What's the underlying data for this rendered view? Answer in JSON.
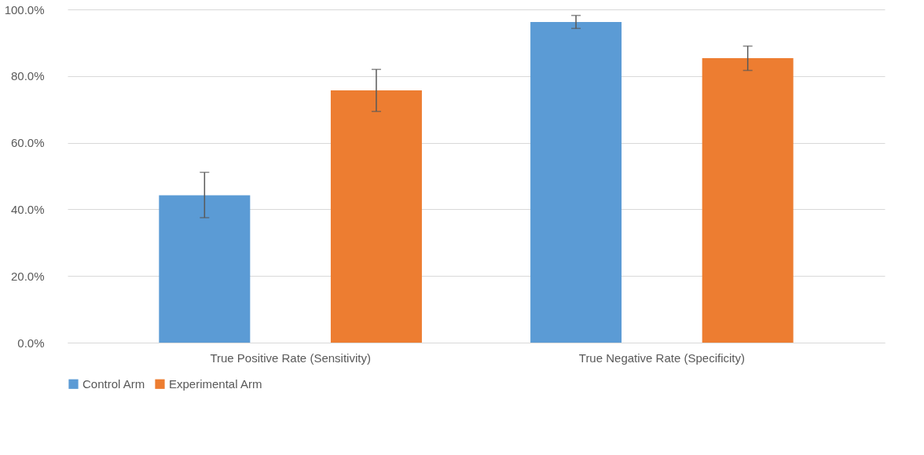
{
  "chart_data": {
    "type": "bar",
    "categories": [
      "True Positive Rate (Sensitivity)",
      "True Negative Rate (Specificity)"
    ],
    "series": [
      {
        "name": "Control Arm",
        "color": "#5b9bd5",
        "values": [
          44.2,
          96.2
        ],
        "errors": [
          [
            37.5,
            51.1
          ],
          [
            94.3,
            98.2
          ]
        ]
      },
      {
        "name": "Experimental Arm",
        "color": "#ed7d31",
        "values": [
          75.7,
          85.4
        ],
        "errors": [
          [
            69.4,
            82.0
          ],
          [
            81.7,
            89.0
          ]
        ]
      }
    ],
    "ylim": [
      0,
      100
    ],
    "yticks": [
      {
        "value": 0,
        "label": "0.0%"
      },
      {
        "value": 20,
        "label": "20.0%"
      },
      {
        "value": 40,
        "label": "40.0%"
      },
      {
        "value": 60,
        "label": "60.0%"
      },
      {
        "value": 80,
        "label": "80.0%"
      },
      {
        "value": 100,
        "label": "100.0%"
      }
    ],
    "grid": "y",
    "legend": "bottom"
  }
}
